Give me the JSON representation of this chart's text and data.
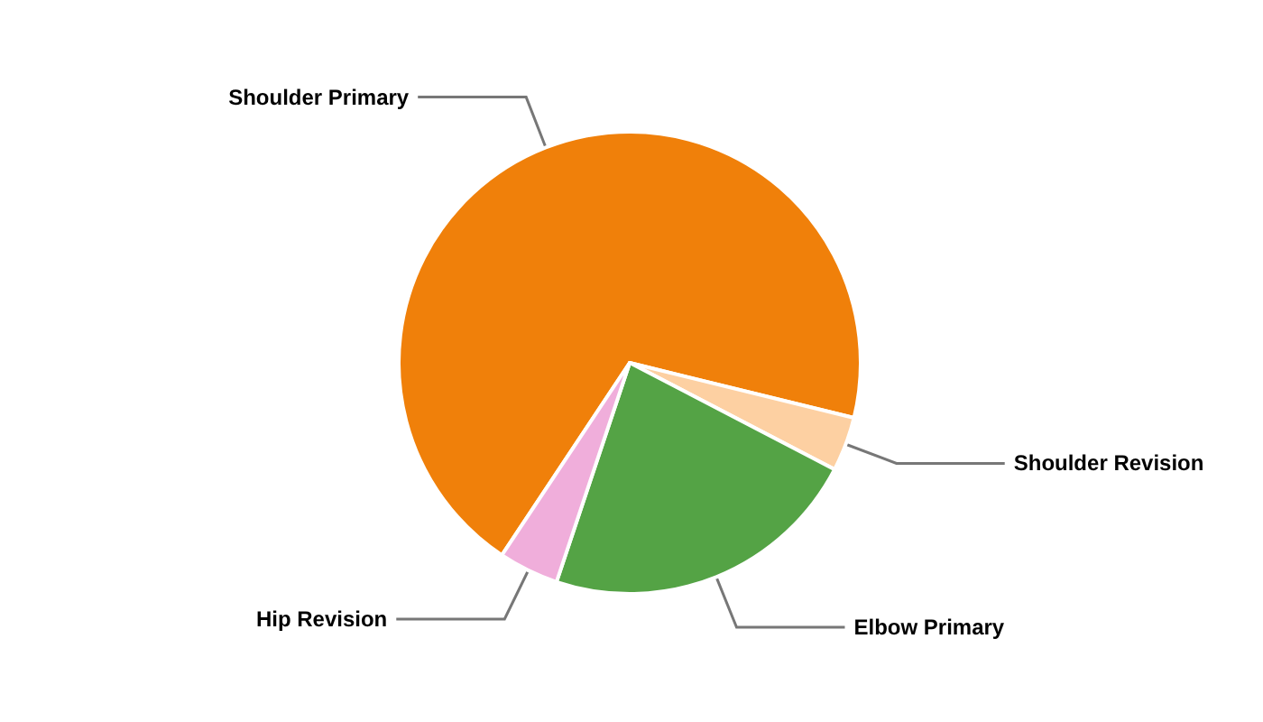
{
  "chart_data": {
    "type": "pie",
    "categories": [
      "Shoulder Primary",
      "Shoulder Revision",
      "Elbow Primary",
      "Hip Revision"
    ],
    "values": [
      69.5,
      3.8,
      22.5,
      4.2
    ],
    "colors": [
      "#f0800a",
      "#fdd0a2",
      "#54a345",
      "#f0aedb"
    ],
    "legend": false
  }
}
